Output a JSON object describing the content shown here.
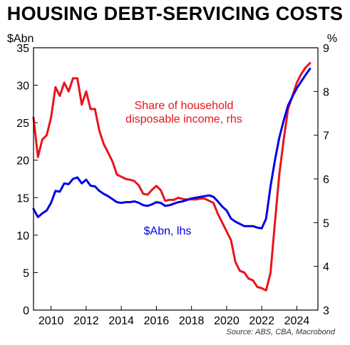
{
  "chart_data": {
    "type": "line",
    "title": "HOUSING DEBT-SERVICING COSTS",
    "left_axis": {
      "unit": "$Abn",
      "ylim": [
        0,
        35
      ],
      "ticks": [
        0,
        5,
        10,
        15,
        20,
        25,
        30,
        35
      ]
    },
    "right_axis": {
      "unit": "%",
      "ylim": [
        3,
        9
      ],
      "ticks": [
        3,
        4,
        5,
        6,
        7,
        8,
        9
      ]
    },
    "x_axis": {
      "xlim": [
        2009,
        2025.2
      ],
      "ticks": [
        2010,
        2012,
        2014,
        2016,
        2018,
        2020,
        2022,
        2024
      ]
    },
    "grid": false,
    "source": "Source: ABS, CBA, Macrobond",
    "series": [
      {
        "name": "Share of household disposable income, rhs",
        "label_line1": "Share of household",
        "label_line2": "disposable income, rhs",
        "axis": "right",
        "color": "#e8141c",
        "x": [
          2009.0,
          2009.25,
          2009.5,
          2009.75,
          2010.0,
          2010.25,
          2010.5,
          2010.75,
          2011.0,
          2011.25,
          2011.5,
          2011.75,
          2012.0,
          2012.25,
          2012.5,
          2012.75,
          2013.0,
          2013.25,
          2013.5,
          2013.75,
          2014.0,
          2014.25,
          2014.5,
          2014.75,
          2015.0,
          2015.25,
          2015.5,
          2015.75,
          2016.0,
          2016.25,
          2016.5,
          2016.75,
          2017.0,
          2017.25,
          2017.5,
          2017.75,
          2018.0,
          2018.25,
          2018.5,
          2018.75,
          2019.0,
          2019.25,
          2019.5,
          2019.75,
          2020.0,
          2020.25,
          2020.5,
          2020.75,
          2021.0,
          2021.25,
          2021.5,
          2021.75,
          2022.0,
          2022.25,
          2022.5,
          2022.75,
          2023.0,
          2023.25,
          2023.5,
          2023.75,
          2024.0,
          2024.25,
          2024.5,
          2024.75
        ],
        "values": [
          7.4,
          6.5,
          6.9,
          7.0,
          7.4,
          8.1,
          7.9,
          8.2,
          8.0,
          8.3,
          8.3,
          7.7,
          8.0,
          7.6,
          7.6,
          7.1,
          6.8,
          6.6,
          6.4,
          6.1,
          6.05,
          6.0,
          5.98,
          5.95,
          5.85,
          5.66,
          5.64,
          5.75,
          5.84,
          5.74,
          5.5,
          5.52,
          5.52,
          5.57,
          5.54,
          5.53,
          5.53,
          5.53,
          5.55,
          5.55,
          5.5,
          5.45,
          5.2,
          5.0,
          4.8,
          4.6,
          4.1,
          3.9,
          3.86,
          3.72,
          3.68,
          3.53,
          3.5,
          3.45,
          3.85,
          5.0,
          6.1,
          6.9,
          7.6,
          7.9,
          8.2,
          8.4,
          8.55,
          8.65
        ]
      },
      {
        "name": "$Abn, lhs",
        "axis": "left",
        "color": "#0000e8",
        "x": [
          2009.0,
          2009.25,
          2009.5,
          2009.75,
          2010.0,
          2010.25,
          2010.5,
          2010.75,
          2011.0,
          2011.25,
          2011.5,
          2011.75,
          2012.0,
          2012.25,
          2012.5,
          2012.75,
          2013.0,
          2013.25,
          2013.5,
          2013.75,
          2014.0,
          2014.25,
          2014.5,
          2014.75,
          2015.0,
          2015.25,
          2015.5,
          2015.75,
          2016.0,
          2016.25,
          2016.5,
          2016.75,
          2017.0,
          2017.25,
          2017.5,
          2017.75,
          2018.0,
          2018.25,
          2018.5,
          2018.75,
          2019.0,
          2019.25,
          2019.5,
          2019.75,
          2020.0,
          2020.25,
          2020.5,
          2020.75,
          2021.0,
          2021.25,
          2021.5,
          2021.75,
          2022.0,
          2022.25,
          2022.5,
          2022.75,
          2023.0,
          2023.25,
          2023.5,
          2023.75,
          2024.0,
          2024.25,
          2024.5,
          2024.75
        ],
        "values": [
          13.5,
          12.4,
          12.9,
          13.3,
          14.3,
          15.9,
          15.8,
          16.9,
          16.8,
          17.5,
          17.7,
          16.9,
          17.4,
          16.6,
          16.5,
          15.9,
          15.5,
          15.2,
          14.8,
          14.4,
          14.3,
          14.4,
          14.4,
          14.5,
          14.3,
          14.0,
          13.9,
          14.1,
          14.4,
          14.3,
          13.9,
          14.0,
          14.2,
          14.4,
          14.5,
          14.7,
          14.9,
          15.0,
          15.1,
          15.2,
          15.3,
          15.1,
          14.5,
          13.8,
          13.3,
          12.2,
          11.8,
          11.5,
          11.2,
          11.2,
          11.2,
          11.0,
          10.9,
          12.2,
          16.5,
          20.0,
          23.0,
          25.3,
          27.3,
          28.5,
          29.6,
          30.5,
          31.4,
          32.2
        ]
      }
    ]
  }
}
